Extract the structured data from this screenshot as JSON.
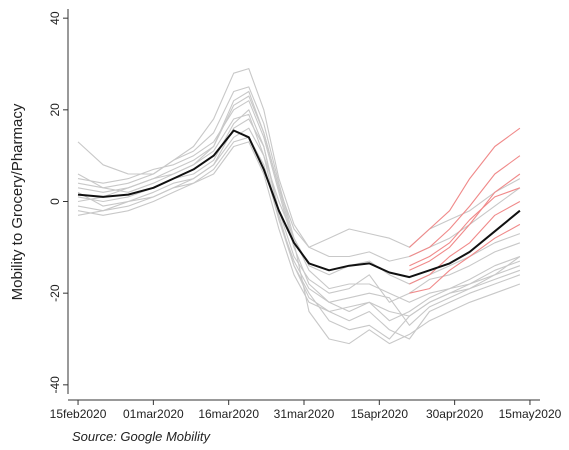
{
  "chart_data": {
    "type": "line",
    "y_label": "Mobility to Grocery/Pharmacy",
    "note": "Source: Google Mobility",
    "x": [
      "2020-02-15",
      "2020-02-20",
      "2020-02-25",
      "2020-03-01",
      "2020-03-05",
      "2020-03-09",
      "2020-03-13",
      "2020-03-17",
      "2020-03-20",
      "2020-03-23",
      "2020-03-26",
      "2020-03-29",
      "2020-04-01",
      "2020-04-05",
      "2020-04-09",
      "2020-04-13",
      "2020-04-17",
      "2020-04-21",
      "2020-04-25",
      "2020-04-29",
      "2020-05-03",
      "2020-05-08",
      "2020-05-13"
    ],
    "xlim": [
      "2020-02-13",
      "2020-05-17"
    ],
    "xticks": [
      {
        "value": "2020-02-15",
        "label": "15feb2020"
      },
      {
        "value": "2020-03-01",
        "label": "01mar2020"
      },
      {
        "value": "2020-03-16",
        "label": "16mar2020"
      },
      {
        "value": "2020-03-31",
        "label": "31mar2020"
      },
      {
        "value": "2020-04-15",
        "label": "15apr2020"
      },
      {
        "value": "2020-04-30",
        "label": "30apr2020"
      },
      {
        "value": "2020-05-15",
        "label": "15may2020"
      }
    ],
    "ylim": [
      -42,
      42
    ],
    "yticks": [
      -40,
      -20,
      0,
      20,
      40
    ],
    "grid": false,
    "series": [
      {
        "color": "#c8c8c8",
        "values": [
          13,
          8,
          6,
          6,
          9,
          12,
          18,
          28,
          29,
          20,
          5,
          -5,
          -10,
          -8,
          -6,
          -7,
          -8,
          -10,
          -6,
          -4,
          -2,
          2,
          5
        ]
      },
      {
        "color": "#c8c8c8",
        "values": [
          2,
          -1,
          0,
          2,
          4,
          5,
          8,
          14,
          16,
          10,
          0,
          -8,
          -15,
          -19,
          -18,
          -18,
          -20,
          -22,
          -20,
          -19,
          -17,
          -14,
          -12
        ]
      },
      {
        "color": "#c8c8c8",
        "values": [
          -2,
          -3,
          -2,
          0,
          2,
          4,
          6,
          12,
          13,
          6,
          -6,
          -16,
          -22,
          -24,
          -23,
          -22,
          -24,
          -25,
          -22,
          -20,
          -18,
          -15,
          -13
        ]
      },
      {
        "color": "#c8c8c8",
        "values": [
          5,
          4,
          5,
          7,
          8,
          10,
          13,
          20,
          22,
          14,
          2,
          -10,
          -18,
          -22,
          -24,
          -22,
          -26,
          -24,
          -21,
          -19,
          -18,
          -16,
          -14
        ]
      },
      {
        "color": "#c8c8c8",
        "values": [
          0,
          1,
          3,
          5,
          6,
          8,
          11,
          18,
          19,
          10,
          -4,
          -14,
          -20,
          -26,
          -28,
          -27,
          -30,
          -25,
          -22,
          -20,
          -19,
          -17,
          -15
        ]
      },
      {
        "color": "#c8c8c8",
        "values": [
          3,
          2,
          3,
          5,
          7,
          9,
          12,
          22,
          24,
          15,
          3,
          -6,
          -10,
          -12,
          -12,
          -11,
          -13,
          -12,
          -10,
          -8,
          -5,
          -1,
          3
        ]
      },
      {
        "color": "#c8c8c8",
        "values": [
          -1,
          -2,
          -1,
          1,
          3,
          5,
          8,
          16,
          18,
          12,
          -2,
          -12,
          -17,
          -20,
          -19,
          -16,
          -22,
          -20,
          -17,
          -16,
          -14,
          -11,
          -9
        ]
      },
      {
        "color": "#c8c8c8",
        "values": [
          4,
          3,
          4,
          6,
          9,
          11,
          15,
          24,
          25,
          17,
          4,
          -8,
          -14,
          -16,
          -14,
          -13,
          -16,
          -18,
          -16,
          -14,
          -12,
          -9,
          -7
        ]
      },
      {
        "color": "#c8c8c8",
        "values": [
          1,
          0,
          1,
          3,
          5,
          6,
          9,
          17,
          20,
          12,
          -3,
          -14,
          -21,
          -24,
          -26,
          -24,
          -28,
          -30,
          -24,
          -22,
          -20,
          -18,
          -16
        ]
      },
      {
        "color": "#c8c8c8",
        "values": [
          -3,
          -2,
          0,
          1,
          3,
          4,
          7,
          13,
          14,
          8,
          -4,
          -13,
          -19,
          -22,
          -21,
          -20,
          -21,
          -27,
          -23,
          -21,
          -19,
          -16,
          -12
        ]
      },
      {
        "color": "#c8c8c8",
        "values": [
          6,
          3,
          2,
          4,
          6,
          8,
          12,
          21,
          23,
          15,
          3,
          -9,
          -24,
          -30,
          -31,
          -28,
          -31,
          -29,
          -26,
          -24,
          -22,
          -20,
          -18
        ]
      },
      {
        "color": "#f08a8a",
        "values": [
          null,
          null,
          null,
          null,
          null,
          null,
          null,
          null,
          null,
          null,
          null,
          null,
          null,
          null,
          null,
          null,
          null,
          -10,
          -6,
          -2,
          5,
          12,
          16
        ]
      },
      {
        "color": "#f08a8a",
        "values": [
          null,
          null,
          null,
          null,
          null,
          null,
          null,
          null,
          null,
          null,
          null,
          null,
          null,
          null,
          null,
          null,
          null,
          -12,
          -10,
          -6,
          -1,
          6,
          10
        ]
      },
      {
        "color": "#f08a8a",
        "values": [
          null,
          null,
          null,
          null,
          null,
          null,
          null,
          null,
          null,
          null,
          null,
          null,
          null,
          null,
          null,
          null,
          null,
          -15,
          -13,
          -10,
          -5,
          2,
          6
        ]
      },
      {
        "color": "#f08a8a",
        "values": [
          null,
          null,
          null,
          null,
          null,
          null,
          null,
          null,
          null,
          null,
          null,
          null,
          null,
          null,
          null,
          null,
          null,
          -18,
          -16,
          -12,
          -9,
          -3,
          0
        ]
      },
      {
        "color": "#f08a8a",
        "values": [
          null,
          null,
          null,
          null,
          null,
          null,
          null,
          null,
          null,
          null,
          null,
          null,
          null,
          null,
          null,
          null,
          null,
          -20,
          -19,
          -15,
          -12,
          -8,
          -5
        ]
      },
      {
        "color": "#f08a8a",
        "values": [
          null,
          null,
          null,
          null,
          null,
          null,
          null,
          null,
          null,
          null,
          null,
          null,
          null,
          null,
          null,
          null,
          null,
          -14,
          -12,
          -9,
          -4,
          1,
          3
        ]
      },
      {
        "color": "#111111",
        "values": [
          1.5,
          1,
          1.5,
          3,
          5,
          7,
          10,
          15.5,
          14,
          7,
          -2,
          -9,
          -13.5,
          -15,
          -14,
          -13.5,
          -15.5,
          -16.5,
          -15,
          -13.5,
          -11,
          -6.5,
          -2
        ]
      }
    ]
  }
}
